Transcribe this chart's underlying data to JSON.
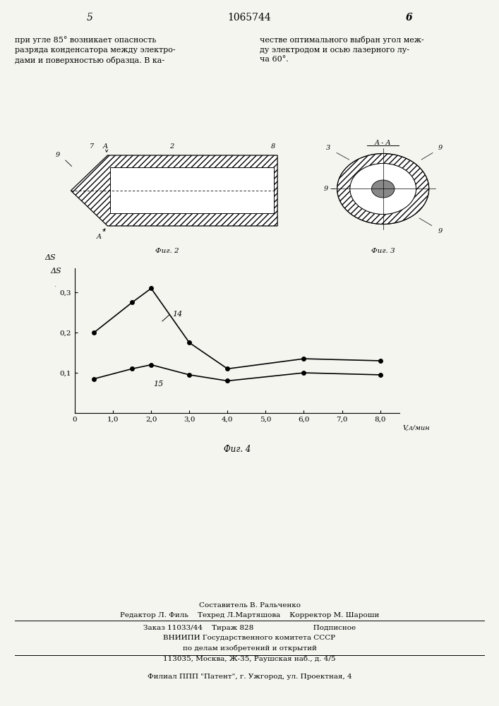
{
  "line14_x": [
    0.5,
    1.5,
    2.0,
    3.0,
    4.0,
    6.0,
    8.0
  ],
  "line14_y": [
    0.2,
    0.275,
    0.31,
    0.175,
    0.11,
    0.135,
    0.13
  ],
  "line15_x": [
    0.5,
    1.5,
    2.0,
    3.0,
    4.0,
    6.0,
    8.0
  ],
  "line15_y": [
    0.085,
    0.11,
    0.12,
    0.095,
    0.08,
    0.1,
    0.095
  ],
  "xlabel": "V, л/мин",
  "ylabel": "ΔS",
  "fig_caption": "Фиг. 4",
  "label14": "14",
  "label15": "15",
  "xticks": [
    0,
    1.0,
    2.0,
    3.0,
    4.0,
    5.0,
    6.0,
    7.0,
    8.0
  ],
  "xtick_labels": [
    "0",
    "1,0",
    "2,0",
    "3,0",
    "4,0",
    "5,0",
    "6,0",
    "7,0",
    "8,0"
  ],
  "yticks": [
    0.1,
    0.2,
    0.3
  ],
  "ytick_labels": [
    "0,1",
    "0,2",
    "0,3"
  ],
  "xlim": [
    0,
    8.5
  ],
  "ylim": [
    0,
    0.36
  ],
  "line_color": "#000000",
  "marker": "o",
  "markersize": 4,
  "linewidth": 1.2,
  "bg_color": "#f5f5f0",
  "page_number_left": "5",
  "page_number_center": "1065744",
  "page_number_right": "6",
  "text_left": "при угле 85° возникает опасность\nразряда конденсатора между электро-\nдами и поверхностью образца. В ка-",
  "text_right": "честве оптимального выбран угол меж-\nду электродом и осью лазерного лу-\nча 60°.",
  "bottom_line1": "Составитель В. Ральченко",
  "bottom_line2": "Редактор Л. Филь    Техред Л.Мартяшова    Корректор М. Шароши",
  "bottom_line3": "Заказ 11033/44    Тираж 828                          Подписное",
  "bottom_line4": "ВНИИПИ Государственного комитета СССР",
  "bottom_line5": "по делам изобретений и открытий",
  "bottom_line6": "113035, Москва, Ж-35, Раушская наб., д. 4/5",
  "bottom_line7": "Филиал ППП \"Патент\", г. Ужгород, ул. Проектная, 4"
}
